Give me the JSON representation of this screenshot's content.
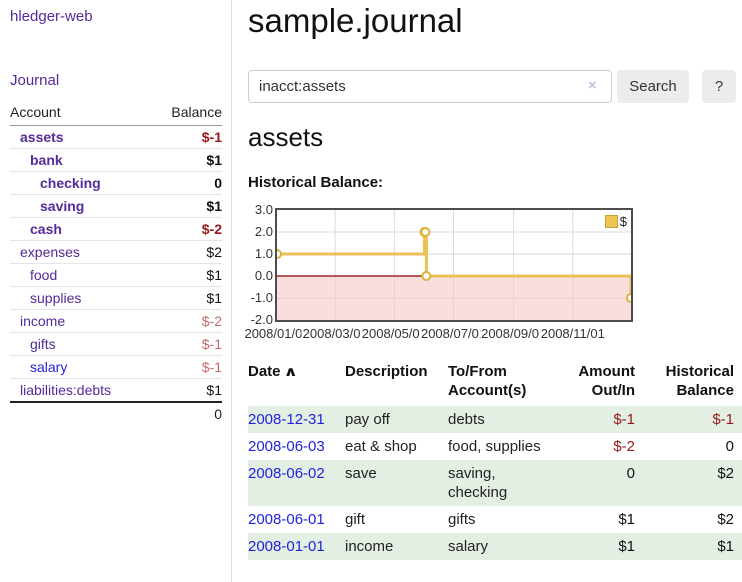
{
  "colors": {
    "link_purple": "#552a9a",
    "link_blue": "#2222dd",
    "negative_strong": "#96181b",
    "negative_faded": "#c06c6c",
    "row_green": "#e2efe2",
    "chart_line_gold": "#e9c158",
    "chart_zero_line": "#8b0000",
    "chart_negative_fill": "#f7caca",
    "chart_border": "#4d4d4d",
    "grid": "#dadada"
  },
  "sidebar": {
    "app_title": "hledger-web",
    "journal_link": "Journal",
    "accounts_table": {
      "headers": {
        "account": "Account",
        "balance": "Balance"
      },
      "rows": [
        {
          "account": "assets",
          "indent": 1,
          "bold": true,
          "link_color": "purple",
          "balance": "$-1",
          "balance_class": "neg-strong"
        },
        {
          "account": "bank",
          "indent": 2,
          "bold": true,
          "link_color": "purple",
          "balance": "$1",
          "balance_class": "pos-bold"
        },
        {
          "account": "checking",
          "indent": 3,
          "bold": true,
          "link_color": "purple",
          "balance": "0",
          "balance_class": "pos-bold"
        },
        {
          "account": "saving",
          "indent": 3,
          "bold": true,
          "link_color": "purple",
          "balance": "$1",
          "balance_class": "pos-bold"
        },
        {
          "account": "cash",
          "indent": 2,
          "bold": true,
          "link_color": "purple",
          "balance": "$-2",
          "balance_class": "neg-strong"
        },
        {
          "account": "expenses",
          "indent": 1,
          "bold": false,
          "link_color": "purple",
          "balance": "$2",
          "balance_class": "pos"
        },
        {
          "account": "food",
          "indent": 2,
          "bold": false,
          "link_color": "purple",
          "balance": "$1",
          "balance_class": "pos"
        },
        {
          "account": "supplies",
          "indent": 2,
          "bold": false,
          "link_color": "purple",
          "balance": "$1",
          "balance_class": "pos"
        },
        {
          "account": "income",
          "indent": 1,
          "bold": false,
          "link_color": "purple",
          "balance": "$-2",
          "balance_class": "neg-faded"
        },
        {
          "account": "gifts",
          "indent": 2,
          "bold": false,
          "link_color": "purple",
          "balance": "$-1",
          "balance_class": "neg-faded"
        },
        {
          "account": "salary",
          "indent": 2,
          "bold": false,
          "link_color": "blue",
          "balance": "$-1",
          "balance_class": "neg-faded"
        },
        {
          "account": "liabilities:debts",
          "indent": 1,
          "bold": false,
          "link_color": "purple",
          "balance": "$1",
          "balance_class": "pos"
        }
      ],
      "total": "0"
    }
  },
  "header": {
    "title": "sample.journal"
  },
  "search": {
    "value": "inacct:assets",
    "clear_icon": "×",
    "button_label": "Search",
    "help_label": "?"
  },
  "account_page": {
    "heading": "assets",
    "chart_label": "Historical Balance:"
  },
  "chart_data": {
    "type": "line",
    "title": "Historical Balance",
    "step": true,
    "series": [
      {
        "name": "$",
        "points": [
          [
            "2008-01-01",
            1
          ],
          [
            "2008-06-01",
            2
          ],
          [
            "2008-06-02",
            2
          ],
          [
            "2008-06-03",
            0
          ],
          [
            "2008-12-31",
            -1
          ]
        ]
      }
    ],
    "x_range": [
      "2008-01-01",
      "2008-12-31"
    ],
    "ylim": [
      -2,
      3
    ],
    "y_ticks": [
      3,
      2,
      1,
      0,
      -1,
      -2
    ],
    "y_tick_labels": [
      "3.0",
      "2.0",
      "1.0",
      "0.0",
      "-1.0",
      "-2.0"
    ],
    "x_ticks": [
      {
        "date": "2008-01-01",
        "label": "2008/01/01"
      },
      {
        "date": "2008-03-01",
        "label": "2008/03/01"
      },
      {
        "date": "2008-05-01",
        "label": "2008/05/01"
      },
      {
        "date": "2008-07-01",
        "label": "2008/07/01"
      },
      {
        "date": "2008-09-01",
        "label": "2008/09/01"
      },
      {
        "date": "2008-11-01",
        "label": "2008/11/01"
      }
    ],
    "legend": {
      "label": "$",
      "position": "top-right"
    },
    "grid": true,
    "negative_region_shaded": true,
    "zero_line": true
  },
  "register": {
    "header_date": "Date",
    "sort_icon": "∧",
    "sort_icon_name": "chevron-up-icon",
    "header_description": "Description",
    "header_tofrom_line1": "To/From",
    "header_tofrom_line2": "Account(s)",
    "header_amount_line1": "Amount",
    "header_amount_line2": "Out/In",
    "header_balance_line1": "Historical",
    "header_balance_line2": "Balance",
    "rows": [
      {
        "date": "2008-12-31",
        "description": "pay off",
        "accounts": "debts",
        "amount": "$-1",
        "amount_neg": true,
        "balance": "$-1",
        "balance_neg": true
      },
      {
        "date": "2008-06-03",
        "description": "eat & shop",
        "accounts": "food, supplies",
        "amount": "$-2",
        "amount_neg": true,
        "balance": "0",
        "balance_neg": false
      },
      {
        "date": "2008-06-02",
        "description": "save",
        "accounts": "saving, checking",
        "amount": "0",
        "amount_neg": false,
        "balance": "$2",
        "balance_neg": false
      },
      {
        "date": "2008-06-01",
        "description": "gift",
        "accounts": "gifts",
        "amount": "$1",
        "amount_neg": false,
        "balance": "$2",
        "balance_neg": false
      },
      {
        "date": "2008-01-01",
        "description": "income",
        "accounts": "salary",
        "amount": "$1",
        "amount_neg": false,
        "balance": "$1",
        "balance_neg": false
      }
    ]
  }
}
